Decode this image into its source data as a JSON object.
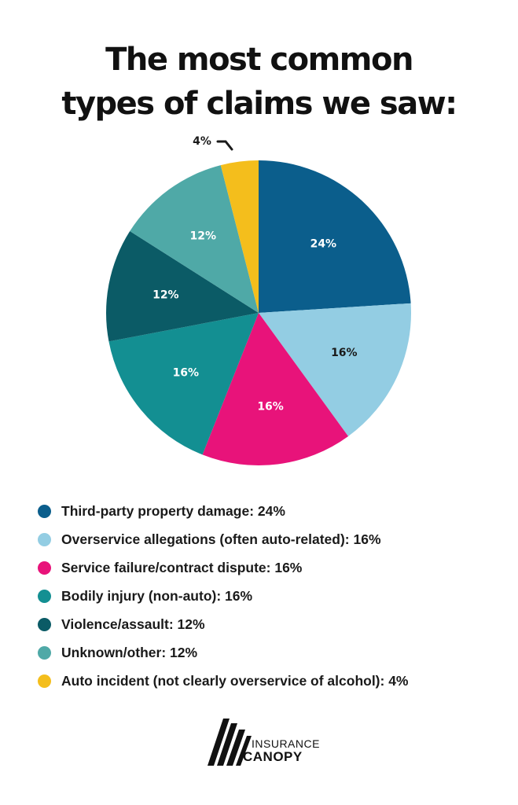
{
  "title": {
    "line1": "The most common",
    "line2": "types of claims we saw:"
  },
  "chart_data": {
    "type": "pie",
    "title": "The most common types of claims we saw:",
    "slices": [
      {
        "name": "Third-party property damage",
        "value": 24,
        "label": "24%",
        "color": "#0b5e8c",
        "label_color": "#ffffff"
      },
      {
        "name": "Overservice allegations (often auto-related)",
        "value": 16,
        "label": "16%",
        "color": "#93cde3",
        "label_color": "#1a1a1a"
      },
      {
        "name": "Service failure/contract dispute",
        "value": 16,
        "label": "16%",
        "color": "#e8137a",
        "label_color": "#ffffff"
      },
      {
        "name": "Bodily injury (non-auto)",
        "value": 16,
        "label": "16%",
        "color": "#138f92",
        "label_color": "#ffffff"
      },
      {
        "name": "Violence/assault",
        "value": 12,
        "label": "12%",
        "color": "#0b5b66",
        "label_color": "#ffffff"
      },
      {
        "name": "Unknown/other",
        "value": 12,
        "label": "12%",
        "color": "#4fa9a7",
        "label_color": "#ffffff"
      },
      {
        "name": "Auto incident (not clearly overservice of alcohol)",
        "value": 4,
        "label": "4%",
        "color": "#f4be1c",
        "label_color": "#1a1a1a",
        "callout": true
      }
    ]
  },
  "legend": [
    {
      "text": "Third-party property damage: 24%",
      "color": "#0b5e8c"
    },
    {
      "text": "Overservice allegations (often auto-related): 16%",
      "color": "#93cde3"
    },
    {
      "text": "Service failure/contract dispute: 16%",
      "color": "#e8137a"
    },
    {
      "text": "Bodily injury (non-auto): 16%",
      "color": "#138f92"
    },
    {
      "text": "Violence/assault: 12%",
      "color": "#0b5b66"
    },
    {
      "text": "Unknown/other: 12%",
      "color": "#4fa9a7"
    },
    {
      "text": "Auto incident (not clearly overservice of alcohol): 4%",
      "color": "#f4be1c"
    }
  ],
  "logo": {
    "line1": "INSURANCE",
    "line2": "CANOPY"
  }
}
